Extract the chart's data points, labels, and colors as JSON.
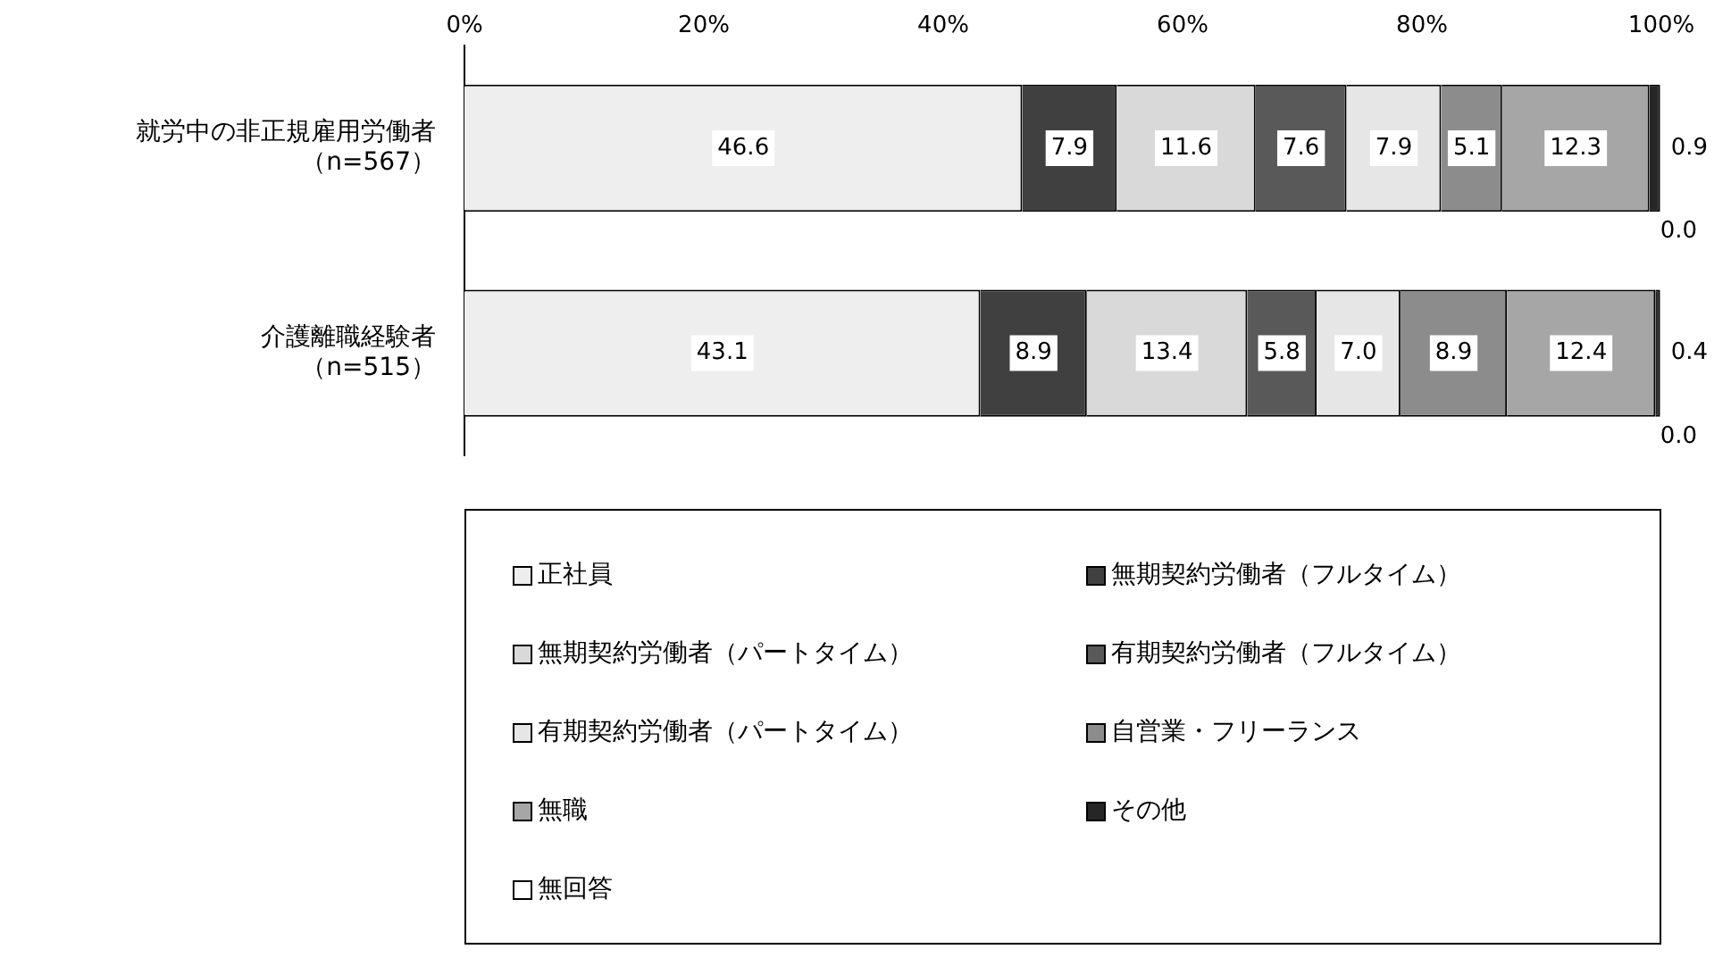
{
  "chart_data": {
    "type": "bar",
    "orientation": "horizontal",
    "stacked": true,
    "categories": [
      "就労中の非正規雇用労働者（n=567）",
      "介護離職経験者（n=515）"
    ],
    "series": [
      {
        "name": "正社員",
        "color": "#eeeeee",
        "values": [
          46.6,
          43.1
        ],
        "value_labels": [
          "46.6",
          "43.1"
        ]
      },
      {
        "name": "無期契約労働者（フルタイム）",
        "color": "#404040",
        "values": [
          7.9,
          8.9
        ],
        "value_labels": [
          "7.9",
          "8.9"
        ]
      },
      {
        "name": "無期契約労働者（パートタイム）",
        "color": "#d9d9d9",
        "values": [
          11.6,
          13.4
        ],
        "value_labels": [
          "11.6",
          "13.4"
        ]
      },
      {
        "name": "有期契約労働者（フルタイム）",
        "color": "#595959",
        "values": [
          7.6,
          5.8
        ],
        "value_labels": [
          "7.6",
          "5.8"
        ]
      },
      {
        "name": "有期契約労働者（パートタイム）",
        "color": "#e6e6e6",
        "values": [
          7.9,
          7.0
        ],
        "value_labels": [
          "7.9",
          "7.0"
        ]
      },
      {
        "name": "自営業・フリーランス",
        "color": "#8c8c8c",
        "values": [
          5.1,
          8.9
        ],
        "value_labels": [
          "5.1",
          "8.9"
        ]
      },
      {
        "name": "無職",
        "color": "#a6a6a6",
        "values": [
          12.3,
          12.4
        ],
        "value_labels": [
          "12.3",
          "12.4"
        ]
      },
      {
        "name": "その他",
        "color": "#262626",
        "values": [
          0.9,
          0.4
        ],
        "value_labels": [
          "0.9",
          "0.4"
        ]
      },
      {
        "name": "無回答",
        "color": "#ffffff",
        "values": [
          0.0,
          0.0
        ],
        "value_labels": [
          "0.0",
          "0.0"
        ]
      }
    ],
    "xlim": [
      0,
      100
    ],
    "xticks": [
      {
        "value": 0,
        "label": "0%"
      },
      {
        "value": 20,
        "label": "20%"
      },
      {
        "value": 40,
        "label": "40%"
      },
      {
        "value": 60,
        "label": "60%"
      },
      {
        "value": 80,
        "label": "80%"
      },
      {
        "value": 100,
        "label": "100%"
      }
    ],
    "grid": false,
    "legend": "bottom"
  }
}
